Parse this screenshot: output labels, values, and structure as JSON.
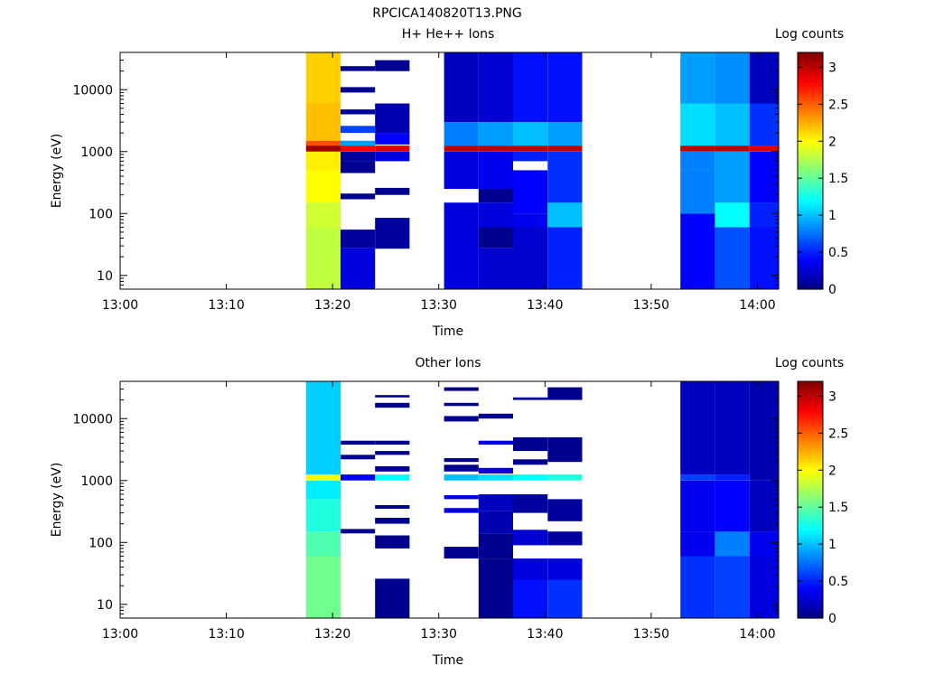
{
  "figure_title": "RPCICA140820T13.PNG",
  "chart_data": [
    {
      "type": "heatmap",
      "title": "H+ He++ Ions",
      "xlabel": "Time",
      "ylabel": "Energy (eV)",
      "colorbar_label": "Log counts",
      "y_scale": "log",
      "ylim": [
        6,
        40000
      ],
      "xlim": [
        "13:00",
        "14:02"
      ],
      "x_ticks": [
        "13:00",
        "13:10",
        "13:20",
        "13:30",
        "13:40",
        "13:50",
        "14:00"
      ],
      "y_ticks": [
        "10",
        "100",
        "1000",
        "10000"
      ],
      "colorbar_ticks": [
        "0",
        "0.5",
        "1",
        "1.5",
        "2",
        "2.5",
        "3"
      ],
      "zlim": [
        0,
        3.2
      ],
      "columns": [
        {
          "start": "13:17:30",
          "end": "13:20:45",
          "bands": [
            {
              "emin": 6,
              "emax": 60,
              "z": 1.8
            },
            {
              "emin": 60,
              "emax": 150,
              "z": 1.85
            },
            {
              "emin": 150,
              "emax": 500,
              "z": 2.0
            },
            {
              "emin": 500,
              "emax": 1000,
              "z": 2.05
            },
            {
              "emin": 1000,
              "emax": 1250,
              "z": 3.1
            },
            {
              "emin": 1250,
              "emax": 1500,
              "z": 2.55
            },
            {
              "emin": 1500,
              "emax": 6000,
              "z": 2.2
            },
            {
              "emin": 6000,
              "emax": 40000,
              "z": 2.15
            }
          ]
        },
        {
          "start": "13:20:45",
          "end": "13:24:00",
          "bands": [
            {
              "emin": 6,
              "emax": 28,
              "z": 0.3
            },
            {
              "emin": 28,
              "emax": 55,
              "z": 0.1
            },
            {
              "emin": 170,
              "emax": 210,
              "z": 0.05
            },
            {
              "emin": 450,
              "emax": 700,
              "z": 0.05
            },
            {
              "emin": 700,
              "emax": 1000,
              "z": 0.1
            },
            {
              "emin": 1000,
              "emax": 1250,
              "z": 2.8
            },
            {
              "emin": 1250,
              "emax": 1500,
              "z": 0.9
            },
            {
              "emin": 2000,
              "emax": 2600,
              "z": 0.6
            },
            {
              "emin": 4000,
              "emax": 4800,
              "z": 0.1
            },
            {
              "emin": 9000,
              "emax": 11000,
              "z": 0.05
            },
            {
              "emin": 20000,
              "emax": 24000,
              "z": 0.05
            }
          ]
        },
        {
          "start": "13:24:00",
          "end": "13:27:15",
          "bands": [
            {
              "emin": 27,
              "emax": 85,
              "z": 0.1
            },
            {
              "emin": 200,
              "emax": 260,
              "z": 0.05
            },
            {
              "emin": 700,
              "emax": 1000,
              "z": 0.3
            },
            {
              "emin": 1000,
              "emax": 1250,
              "z": 2.9
            },
            {
              "emin": 1300,
              "emax": 2000,
              "z": 0.4
            },
            {
              "emin": 2000,
              "emax": 6000,
              "z": 0.15
            },
            {
              "emin": 20000,
              "emax": 30000,
              "z": 0.05
            }
          ]
        },
        {
          "start": "13:30:30",
          "end": "13:33:45",
          "bands": [
            {
              "emin": 6,
              "emax": 150,
              "z": 0.3
            },
            {
              "emin": 250,
              "emax": 1000,
              "z": 0.3
            },
            {
              "emin": 1000,
              "emax": 1250,
              "z": 3.0
            },
            {
              "emin": 1250,
              "emax": 3000,
              "z": 0.8
            },
            {
              "emin": 3000,
              "emax": 40000,
              "z": 0.2
            }
          ]
        },
        {
          "start": "13:33:45",
          "end": "13:37:00",
          "bands": [
            {
              "emin": 6,
              "emax": 28,
              "z": 0.25
            },
            {
              "emin": 28,
              "emax": 60,
              "z": 0.05
            },
            {
              "emin": 60,
              "emax": 150,
              "z": 0.3
            },
            {
              "emin": 150,
              "emax": 250,
              "z": 0.05
            },
            {
              "emin": 250,
              "emax": 1000,
              "z": 0.35
            },
            {
              "emin": 1000,
              "emax": 1250,
              "z": 3.0
            },
            {
              "emin": 1250,
              "emax": 3000,
              "z": 0.9
            },
            {
              "emin": 3000,
              "emax": 40000,
              "z": 0.25
            }
          ]
        },
        {
          "start": "13:37:00",
          "end": "13:40:15",
          "bands": [
            {
              "emin": 6,
              "emax": 60,
              "z": 0.25
            },
            {
              "emin": 60,
              "emax": 100,
              "z": 0.35
            },
            {
              "emin": 100,
              "emax": 500,
              "z": 0.4
            },
            {
              "emin": 700,
              "emax": 1000,
              "z": 0.5
            },
            {
              "emin": 1000,
              "emax": 1250,
              "z": 3.0
            },
            {
              "emin": 1250,
              "emax": 3000,
              "z": 1.0
            },
            {
              "emin": 3000,
              "emax": 40000,
              "z": 0.45
            }
          ]
        },
        {
          "start": "13:40:15",
          "end": "13:43:30",
          "bands": [
            {
              "emin": 6,
              "emax": 60,
              "z": 0.5
            },
            {
              "emin": 60,
              "emax": 150,
              "z": 1.0
            },
            {
              "emin": 150,
              "emax": 1000,
              "z": 0.55
            },
            {
              "emin": 1000,
              "emax": 1250,
              "z": 3.0
            },
            {
              "emin": 1250,
              "emax": 3000,
              "z": 0.9
            },
            {
              "emin": 3000,
              "emax": 40000,
              "z": 0.45
            }
          ]
        },
        {
          "start": "13:52:45",
          "end": "13:56:00",
          "bands": [
            {
              "emin": 6,
              "emax": 100,
              "z": 0.4
            },
            {
              "emin": 100,
              "emax": 500,
              "z": 0.8
            },
            {
              "emin": 500,
              "emax": 1000,
              "z": 0.8
            },
            {
              "emin": 1000,
              "emax": 1250,
              "z": 3.0
            },
            {
              "emin": 1250,
              "emax": 6000,
              "z": 1.1
            },
            {
              "emin": 6000,
              "emax": 40000,
              "z": 0.9
            }
          ]
        },
        {
          "start": "13:56:00",
          "end": "13:59:15",
          "bands": [
            {
              "emin": 6,
              "emax": 60,
              "z": 0.65
            },
            {
              "emin": 60,
              "emax": 150,
              "z": 1.2
            },
            {
              "emin": 150,
              "emax": 1000,
              "z": 0.9
            },
            {
              "emin": 1000,
              "emax": 1250,
              "z": 3.0
            },
            {
              "emin": 1250,
              "emax": 6000,
              "z": 1.0
            },
            {
              "emin": 6000,
              "emax": 40000,
              "z": 0.85
            }
          ]
        },
        {
          "start": "13:59:15",
          "end": "14:02:30",
          "bands": [
            {
              "emin": 6,
              "emax": 60,
              "z": 0.45
            },
            {
              "emin": 60,
              "emax": 150,
              "z": 0.5
            },
            {
              "emin": 150,
              "emax": 1000,
              "z": 0.4
            },
            {
              "emin": 1000,
              "emax": 1250,
              "z": 2.9
            },
            {
              "emin": 1250,
              "emax": 6000,
              "z": 0.55
            },
            {
              "emin": 6000,
              "emax": 40000,
              "z": 0.2
            }
          ]
        }
      ]
    },
    {
      "type": "heatmap",
      "title": "Other Ions",
      "xlabel": "Time",
      "ylabel": "Energy (eV)",
      "colorbar_label": "Log counts",
      "y_scale": "log",
      "ylim": [
        6,
        40000
      ],
      "xlim": [
        "13:00",
        "14:02"
      ],
      "x_ticks": [
        "13:00",
        "13:10",
        "13:20",
        "13:30",
        "13:40",
        "13:50",
        "14:00"
      ],
      "y_ticks": [
        "10",
        "100",
        "1000",
        "10000"
      ],
      "colorbar_ticks": [
        "0",
        "0.5",
        "1",
        "1.5",
        "2",
        "2.5",
        "3"
      ],
      "zlim": [
        0,
        3.2
      ],
      "columns": [
        {
          "start": "13:17:30",
          "end": "13:20:45",
          "bands": [
            {
              "emin": 6,
              "emax": 60,
              "z": 1.55
            },
            {
              "emin": 60,
              "emax": 150,
              "z": 1.45
            },
            {
              "emin": 150,
              "emax": 500,
              "z": 1.3
            },
            {
              "emin": 500,
              "emax": 1000,
              "z": 1.15
            },
            {
              "emin": 1000,
              "emax": 1250,
              "z": 1.95
            },
            {
              "emin": 1250,
              "emax": 40000,
              "z": 1.05
            }
          ]
        },
        {
          "start": "13:20:45",
          "end": "13:24:00",
          "bands": [
            {
              "emin": 140,
              "emax": 165,
              "z": 0.05
            },
            {
              "emin": 1000,
              "emax": 1250,
              "z": 0.35
            },
            {
              "emin": 2200,
              "emax": 2600,
              "z": 0.05
            },
            {
              "emin": 3800,
              "emax": 4400,
              "z": 0.05
            }
          ]
        },
        {
          "start": "13:24:00",
          "end": "13:27:15",
          "bands": [
            {
              "emin": 6,
              "emax": 26,
              "z": 0.05
            },
            {
              "emin": 80,
              "emax": 130,
              "z": 0.05
            },
            {
              "emin": 200,
              "emax": 250,
              "z": 0.05
            },
            {
              "emin": 350,
              "emax": 400,
              "z": 0.05
            },
            {
              "emin": 1000,
              "emax": 1250,
              "z": 1.2
            },
            {
              "emin": 1400,
              "emax": 1700,
              "z": 0.05
            },
            {
              "emin": 2600,
              "emax": 3000,
              "z": 0.05
            },
            {
              "emin": 3800,
              "emax": 4400,
              "z": 0.05
            },
            {
              "emin": 15000,
              "emax": 18000,
              "z": 0.05
            },
            {
              "emin": 22000,
              "emax": 24000,
              "z": 0.05
            }
          ]
        },
        {
          "start": "13:30:30",
          "end": "13:33:45",
          "bands": [
            {
              "emin": 55,
              "emax": 85,
              "z": 0.05
            },
            {
              "emin": 300,
              "emax": 360,
              "z": 0.3
            },
            {
              "emin": 500,
              "emax": 580,
              "z": 0.3
            },
            {
              "emin": 1000,
              "emax": 1250,
              "z": 1.0
            },
            {
              "emin": 1400,
              "emax": 1800,
              "z": 0.05
            },
            {
              "emin": 2000,
              "emax": 2300,
              "z": 0.05
            },
            {
              "emin": 9000,
              "emax": 11000,
              "z": 0.05
            },
            {
              "emin": 16000,
              "emax": 18000,
              "z": 0.05
            },
            {
              "emin": 28000,
              "emax": 32000,
              "z": 0.05
            }
          ]
        },
        {
          "start": "13:33:45",
          "end": "13:37:00",
          "bands": [
            {
              "emin": 6,
              "emax": 55,
              "z": 0.05
            },
            {
              "emin": 55,
              "emax": 140,
              "z": 0.05
            },
            {
              "emin": 140,
              "emax": 320,
              "z": 0.15
            },
            {
              "emin": 320,
              "emax": 600,
              "z": 0.2
            },
            {
              "emin": 1000,
              "emax": 1250,
              "z": 1.1
            },
            {
              "emin": 1300,
              "emax": 1600,
              "z": 0.3
            },
            {
              "emin": 3800,
              "emax": 4400,
              "z": 0.3
            },
            {
              "emin": 10000,
              "emax": 12000,
              "z": 0.05
            }
          ]
        },
        {
          "start": "13:37:00",
          "end": "13:40:15",
          "bands": [
            {
              "emin": 6,
              "emax": 25,
              "z": 0.45
            },
            {
              "emin": 25,
              "emax": 55,
              "z": 0.3
            },
            {
              "emin": 90,
              "emax": 160,
              "z": 0.25
            },
            {
              "emin": 300,
              "emax": 600,
              "z": 0.1
            },
            {
              "emin": 1000,
              "emax": 1250,
              "z": 1.2
            },
            {
              "emin": 1800,
              "emax": 2200,
              "z": 0.05
            },
            {
              "emin": 3000,
              "emax": 5000,
              "z": 0.05
            },
            {
              "emin": 20000,
              "emax": 22000,
              "z": 0.05
            }
          ]
        },
        {
          "start": "13:40:15",
          "end": "13:43:30",
          "bands": [
            {
              "emin": 6,
              "emax": 25,
              "z": 0.55
            },
            {
              "emin": 25,
              "emax": 55,
              "z": 0.3
            },
            {
              "emin": 90,
              "emax": 150,
              "z": 0.1
            },
            {
              "emin": 220,
              "emax": 500,
              "z": 0.1
            },
            {
              "emin": 1000,
              "emax": 1250,
              "z": 1.3
            },
            {
              "emin": 2000,
              "emax": 5000,
              "z": 0.05
            },
            {
              "emin": 20000,
              "emax": 32000,
              "z": 0.05
            }
          ]
        },
        {
          "start": "13:52:45",
          "end": "13:56:00",
          "bands": [
            {
              "emin": 6,
              "emax": 60,
              "z": 0.55
            },
            {
              "emin": 60,
              "emax": 150,
              "z": 0.35
            },
            {
              "emin": 150,
              "emax": 1000,
              "z": 0.35
            },
            {
              "emin": 1000,
              "emax": 1250,
              "z": 0.6
            },
            {
              "emin": 1250,
              "emax": 40000,
              "z": 0.2
            }
          ]
        },
        {
          "start": "13:56:00",
          "end": "13:59:15",
          "bands": [
            {
              "emin": 6,
              "emax": 60,
              "z": 0.6
            },
            {
              "emin": 60,
              "emax": 150,
              "z": 0.8
            },
            {
              "emin": 150,
              "emax": 1000,
              "z": 0.4
            },
            {
              "emin": 1000,
              "emax": 1250,
              "z": 0.5
            },
            {
              "emin": 1250,
              "emax": 40000,
              "z": 0.2
            }
          ]
        },
        {
          "start": "13:59:15",
          "end": "14:02:30",
          "bands": [
            {
              "emin": 6,
              "emax": 60,
              "z": 0.3
            },
            {
              "emin": 60,
              "emax": 150,
              "z": 0.35
            },
            {
              "emin": 150,
              "emax": 1000,
              "z": 0.2
            },
            {
              "emin": 1000,
              "emax": 40000,
              "z": 0.15
            }
          ]
        }
      ]
    }
  ]
}
